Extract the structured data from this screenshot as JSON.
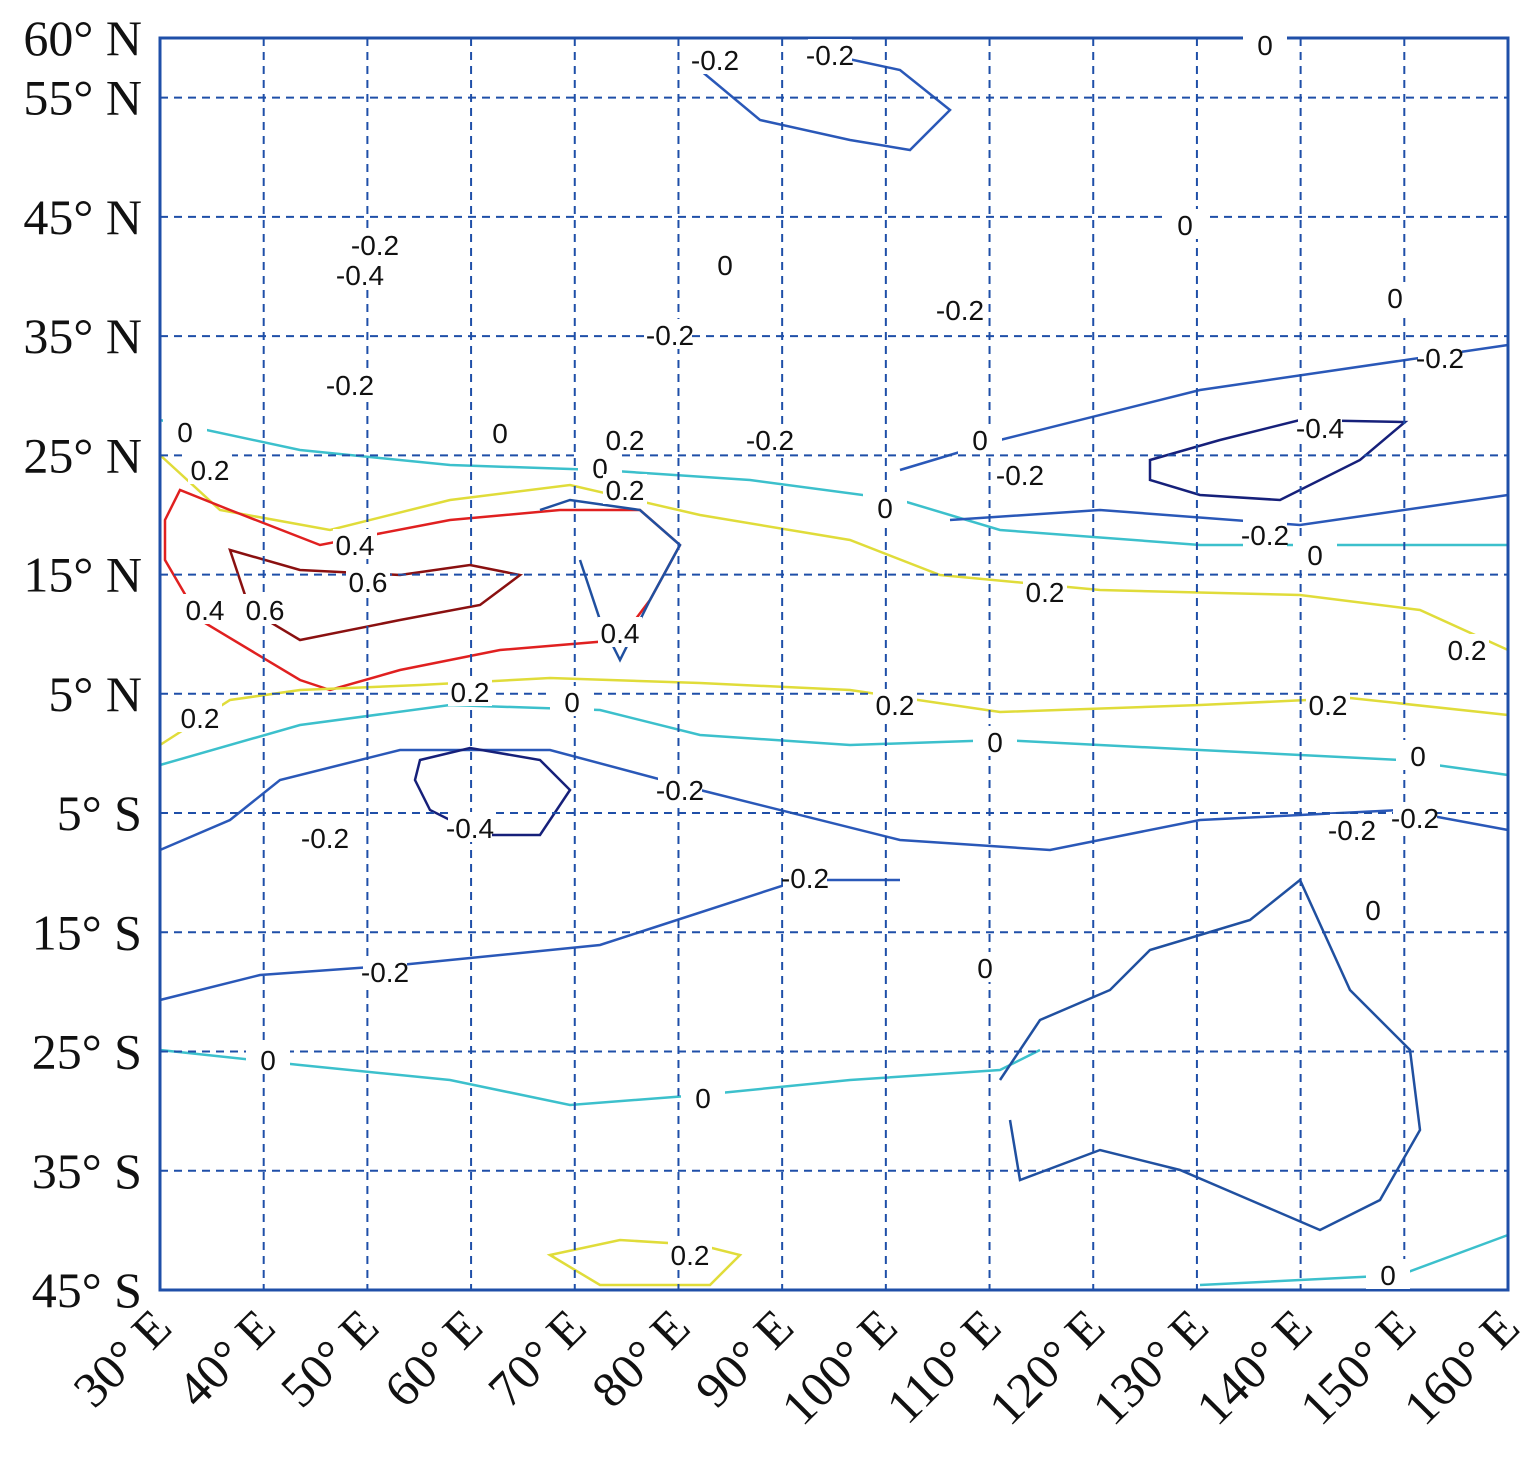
{
  "map": {
    "xlim": [
      30,
      160
    ],
    "ylim": [
      -45,
      60
    ],
    "xticks": [
      {
        "value": 30,
        "label": "30° E"
      },
      {
        "value": 40,
        "label": "40° E"
      },
      {
        "value": 50,
        "label": "50° E"
      },
      {
        "value": 60,
        "label": "60° E"
      },
      {
        "value": 70,
        "label": "70° E"
      },
      {
        "value": 80,
        "label": "80° E"
      },
      {
        "value": 90,
        "label": "90° E"
      },
      {
        "value": 100,
        "label": "100° E"
      },
      {
        "value": 110,
        "label": "110° E"
      },
      {
        "value": 120,
        "label": "120° E"
      },
      {
        "value": 130,
        "label": "130° E"
      },
      {
        "value": 140,
        "label": "140° E"
      },
      {
        "value": 150,
        "label": "150° E"
      },
      {
        "value": 160,
        "label": "160° E"
      }
    ],
    "yticks": [
      {
        "value": 60,
        "label": "60° N"
      },
      {
        "value": 55,
        "label": "55° N"
      },
      {
        "value": 45,
        "label": "45° N"
      },
      {
        "value": 35,
        "label": "35° N"
      },
      {
        "value": 25,
        "label": "25° N"
      },
      {
        "value": 15,
        "label": "15° N"
      },
      {
        "value": 5,
        "label": "5° N"
      },
      {
        "value": -5,
        "label": "5° S"
      },
      {
        "value": -15,
        "label": "15° S"
      },
      {
        "value": -25,
        "label": "25° S"
      },
      {
        "value": -35,
        "label": "35° S"
      },
      {
        "value": -45,
        "label": "45° S"
      }
    ],
    "contour_labels": [
      "-0.2",
      "-0.2",
      "0",
      "-0.2",
      "-0.4",
      "-0.2",
      "0",
      "-0.2",
      "-0.2",
      "0",
      "0",
      "-0.2",
      "-0.4",
      "0",
      "0.2",
      "0",
      "0.2",
      "-0.2",
      "0",
      "-0.2",
      "0",
      "0",
      "0.2",
      "0.4",
      "0.6",
      "-0.2",
      "0",
      "0.2",
      "0.4",
      "0.6",
      "0.4",
      "0.2",
      "0.2",
      "0",
      "0.2",
      "0.2",
      "0.2",
      "0",
      "0",
      "-0.2",
      "-0.4",
      "-0.2",
      "-0.2",
      "-0.2",
      "0",
      "-0.2",
      "-0.2",
      "0",
      "0",
      "0",
      "0.2",
      "0"
    ]
  }
}
